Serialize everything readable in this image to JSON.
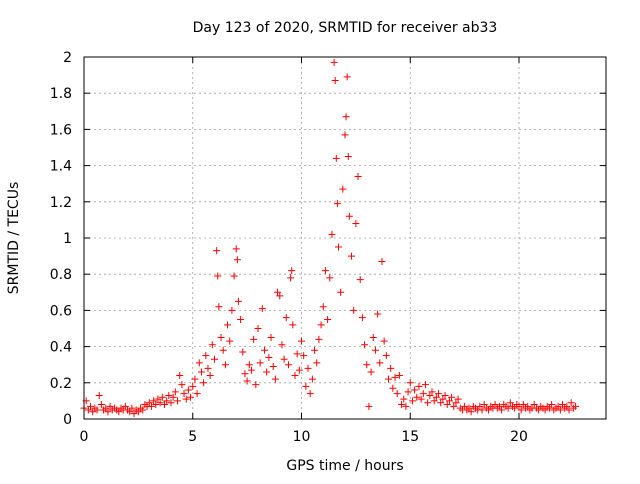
{
  "chart_data": {
    "type": "scatter",
    "title": "Day 123 of 2020, SRMTID for receiver ab33",
    "xlabel": "GPS time / hours",
    "ylabel": "SRMTID / TECUs",
    "xlim": [
      0,
      24
    ],
    "ylim": [
      0,
      2
    ],
    "xticks": [
      0,
      5,
      10,
      15,
      20
    ],
    "xtick_labels": [
      "0",
      "5",
      "10",
      "15",
      "20"
    ],
    "yticks": [
      0,
      0.2,
      0.4,
      0.6,
      0.8,
      1,
      1.2,
      1.4,
      1.6,
      1.8,
      2
    ],
    "ytick_labels": [
      "0",
      "0.2",
      "0.4",
      "0.6",
      "0.8",
      "1",
      "1.2",
      "1.4",
      "1.6",
      "1.8",
      "2"
    ],
    "grid": true,
    "marker": "+",
    "color": "#ff0000",
    "series": [
      {
        "name": "SRMTID",
        "points": [
          [
            0.0,
            0.06
          ],
          [
            0.1,
            0.1
          ],
          [
            0.2,
            0.05
          ],
          [
            0.3,
            0.07
          ],
          [
            0.4,
            0.04
          ],
          [
            0.5,
            0.06
          ],
          [
            0.6,
            0.05
          ],
          [
            0.7,
            0.13
          ],
          [
            0.8,
            0.08
          ],
          [
            0.9,
            0.05
          ],
          [
            1.0,
            0.06
          ],
          [
            1.1,
            0.04
          ],
          [
            1.2,
            0.07
          ],
          [
            1.3,
            0.05
          ],
          [
            1.4,
            0.06
          ],
          [
            1.5,
            0.05
          ],
          [
            1.6,
            0.04
          ],
          [
            1.7,
            0.06
          ],
          [
            1.8,
            0.05
          ],
          [
            1.9,
            0.07
          ],
          [
            2.0,
            0.05
          ],
          [
            2.1,
            0.04
          ],
          [
            2.2,
            0.06
          ],
          [
            2.3,
            0.03
          ],
          [
            2.4,
            0.05
          ],
          [
            2.5,
            0.04
          ],
          [
            2.6,
            0.06
          ],
          [
            2.7,
            0.05
          ],
          [
            2.8,
            0.08
          ],
          [
            2.9,
            0.07
          ],
          [
            3.0,
            0.09
          ],
          [
            3.1,
            0.07
          ],
          [
            3.2,
            0.1
          ],
          [
            3.3,
            0.08
          ],
          [
            3.4,
            0.11
          ],
          [
            3.5,
            0.09
          ],
          [
            3.6,
            0.12
          ],
          [
            3.7,
            0.08
          ],
          [
            3.8,
            0.1
          ],
          [
            3.9,
            0.13
          ],
          [
            4.0,
            0.09
          ],
          [
            4.1,
            0.12
          ],
          [
            4.2,
            0.15
          ],
          [
            4.3,
            0.1
          ],
          [
            4.4,
            0.24
          ],
          [
            4.5,
            0.19
          ],
          [
            4.6,
            0.14
          ],
          [
            4.7,
            0.11
          ],
          [
            4.8,
            0.16
          ],
          [
            4.9,
            0.12
          ],
          [
            5.0,
            0.18
          ],
          [
            5.1,
            0.22
          ],
          [
            5.2,
            0.14
          ],
          [
            5.3,
            0.31
          ],
          [
            5.4,
            0.26
          ],
          [
            5.5,
            0.2
          ],
          [
            5.6,
            0.35
          ],
          [
            5.7,
            0.28
          ],
          [
            5.8,
            0.24
          ],
          [
            5.9,
            0.41
          ],
          [
            6.0,
            0.33
          ],
          [
            6.1,
            0.93
          ],
          [
            6.15,
            0.79
          ],
          [
            6.2,
            0.62
          ],
          [
            6.3,
            0.45
          ],
          [
            6.4,
            0.38
          ],
          [
            6.5,
            0.3
          ],
          [
            6.6,
            0.52
          ],
          [
            6.7,
            0.43
          ],
          [
            6.8,
            0.6
          ],
          [
            6.9,
            0.79
          ],
          [
            7.0,
            0.94
          ],
          [
            7.05,
            0.88
          ],
          [
            7.1,
            0.65
          ],
          [
            7.2,
            0.55
          ],
          [
            7.3,
            0.37
          ],
          [
            7.4,
            0.25
          ],
          [
            7.5,
            0.21
          ],
          [
            7.6,
            0.3
          ],
          [
            7.7,
            0.27
          ],
          [
            7.8,
            0.44
          ],
          [
            7.9,
            0.19
          ],
          [
            8.0,
            0.5
          ],
          [
            8.1,
            0.31
          ],
          [
            8.2,
            0.61
          ],
          [
            8.3,
            0.38
          ],
          [
            8.4,
            0.26
          ],
          [
            8.5,
            0.34
          ],
          [
            8.6,
            0.45
          ],
          [
            8.7,
            0.29
          ],
          [
            8.8,
            0.22
          ],
          [
            8.9,
            0.7
          ],
          [
            9.0,
            0.68
          ],
          [
            9.1,
            0.41
          ],
          [
            9.2,
            0.33
          ],
          [
            9.3,
            0.56
          ],
          [
            9.4,
            0.3
          ],
          [
            9.5,
            0.78
          ],
          [
            9.55,
            0.82
          ],
          [
            9.6,
            0.52
          ],
          [
            9.7,
            0.24
          ],
          [
            9.8,
            0.36
          ],
          [
            9.9,
            0.27
          ],
          [
            10.0,
            0.43
          ],
          [
            10.1,
            0.35
          ],
          [
            10.2,
            0.18
          ],
          [
            10.3,
            0.28
          ],
          [
            10.4,
            0.14
          ],
          [
            10.5,
            0.22
          ],
          [
            10.6,
            0.38
          ],
          [
            10.7,
            0.31
          ],
          [
            10.8,
            0.44
          ],
          [
            10.9,
            0.52
          ],
          [
            11.0,
            0.62
          ],
          [
            11.1,
            0.82
          ],
          [
            11.2,
            0.55
          ],
          [
            11.3,
            0.78
          ],
          [
            11.4,
            1.02
          ],
          [
            11.5,
            1.97
          ],
          [
            11.55,
            1.87
          ],
          [
            11.6,
            1.44
          ],
          [
            11.65,
            1.19
          ],
          [
            11.7,
            0.95
          ],
          [
            11.8,
            0.7
          ],
          [
            11.9,
            1.27
          ],
          [
            12.0,
            1.57
          ],
          [
            12.05,
            1.67
          ],
          [
            12.1,
            1.89
          ],
          [
            12.15,
            1.45
          ],
          [
            12.2,
            1.12
          ],
          [
            12.3,
            0.9
          ],
          [
            12.4,
            0.6
          ],
          [
            12.5,
            1.08
          ],
          [
            12.6,
            1.34
          ],
          [
            12.7,
            0.77
          ],
          [
            12.8,
            0.56
          ],
          [
            12.9,
            0.41
          ],
          [
            13.0,
            0.3
          ],
          [
            13.1,
            0.07
          ],
          [
            13.2,
            0.26
          ],
          [
            13.3,
            0.45
          ],
          [
            13.4,
            0.38
          ],
          [
            13.5,
            0.58
          ],
          [
            13.6,
            0.31
          ],
          [
            13.7,
            0.87
          ],
          [
            13.8,
            0.43
          ],
          [
            13.9,
            0.35
          ],
          [
            14.0,
            0.22
          ],
          [
            14.1,
            0.28
          ],
          [
            14.2,
            0.17
          ],
          [
            14.3,
            0.23
          ],
          [
            14.4,
            0.14
          ],
          [
            14.5,
            0.24
          ],
          [
            14.6,
            0.08
          ],
          [
            14.7,
            0.11
          ],
          [
            14.8,
            0.07
          ],
          [
            14.9,
            0.15
          ],
          [
            15.0,
            0.2
          ],
          [
            15.1,
            0.1
          ],
          [
            15.2,
            0.16
          ],
          [
            15.3,
            0.12
          ],
          [
            15.4,
            0.18
          ],
          [
            15.5,
            0.11
          ],
          [
            15.6,
            0.14
          ],
          [
            15.7,
            0.19
          ],
          [
            15.8,
            0.09
          ],
          [
            15.9,
            0.13
          ],
          [
            16.0,
            0.15
          ],
          [
            16.1,
            0.1
          ],
          [
            16.2,
            0.12
          ],
          [
            16.3,
            0.14
          ],
          [
            16.4,
            0.09
          ],
          [
            16.5,
            0.11
          ],
          [
            16.6,
            0.13
          ],
          [
            16.7,
            0.08
          ],
          [
            16.8,
            0.1
          ],
          [
            16.9,
            0.12
          ],
          [
            17.0,
            0.07
          ],
          [
            17.1,
            0.09
          ],
          [
            17.2,
            0.11
          ],
          [
            17.3,
            0.06
          ],
          [
            17.4,
            0.05
          ],
          [
            17.5,
            0.07
          ],
          [
            17.6,
            0.05
          ],
          [
            17.7,
            0.06
          ],
          [
            17.8,
            0.04
          ],
          [
            17.9,
            0.07
          ],
          [
            18.0,
            0.06
          ],
          [
            18.1,
            0.05
          ],
          [
            18.2,
            0.07
          ],
          [
            18.3,
            0.05
          ],
          [
            18.4,
            0.08
          ],
          [
            18.5,
            0.06
          ],
          [
            18.6,
            0.05
          ],
          [
            18.7,
            0.07
          ],
          [
            18.8,
            0.06
          ],
          [
            18.9,
            0.08
          ],
          [
            19.0,
            0.06
          ],
          [
            19.1,
            0.07
          ],
          [
            19.2,
            0.05
          ],
          [
            19.3,
            0.08
          ],
          [
            19.4,
            0.07
          ],
          [
            19.5,
            0.06
          ],
          [
            19.6,
            0.09
          ],
          [
            19.7,
            0.07
          ],
          [
            19.8,
            0.06
          ],
          [
            19.9,
            0.08
          ],
          [
            20.0,
            0.07
          ],
          [
            20.1,
            0.05
          ],
          [
            20.2,
            0.08
          ],
          [
            20.3,
            0.06
          ],
          [
            20.4,
            0.07
          ],
          [
            20.5,
            0.05
          ],
          [
            20.6,
            0.06
          ],
          [
            20.7,
            0.08
          ],
          [
            20.8,
            0.06
          ],
          [
            20.9,
            0.05
          ],
          [
            21.0,
            0.07
          ],
          [
            21.1,
            0.06
          ],
          [
            21.2,
            0.05
          ],
          [
            21.3,
            0.07
          ],
          [
            21.4,
            0.06
          ],
          [
            21.5,
            0.08
          ],
          [
            21.6,
            0.05
          ],
          [
            21.7,
            0.06
          ],
          [
            21.8,
            0.07
          ],
          [
            21.9,
            0.05
          ],
          [
            22.0,
            0.08
          ],
          [
            22.1,
            0.06
          ],
          [
            22.2,
            0.07
          ],
          [
            22.3,
            0.05
          ],
          [
            22.4,
            0.09
          ],
          [
            22.5,
            0.06
          ],
          [
            22.6,
            0.07
          ]
        ]
      }
    ]
  }
}
